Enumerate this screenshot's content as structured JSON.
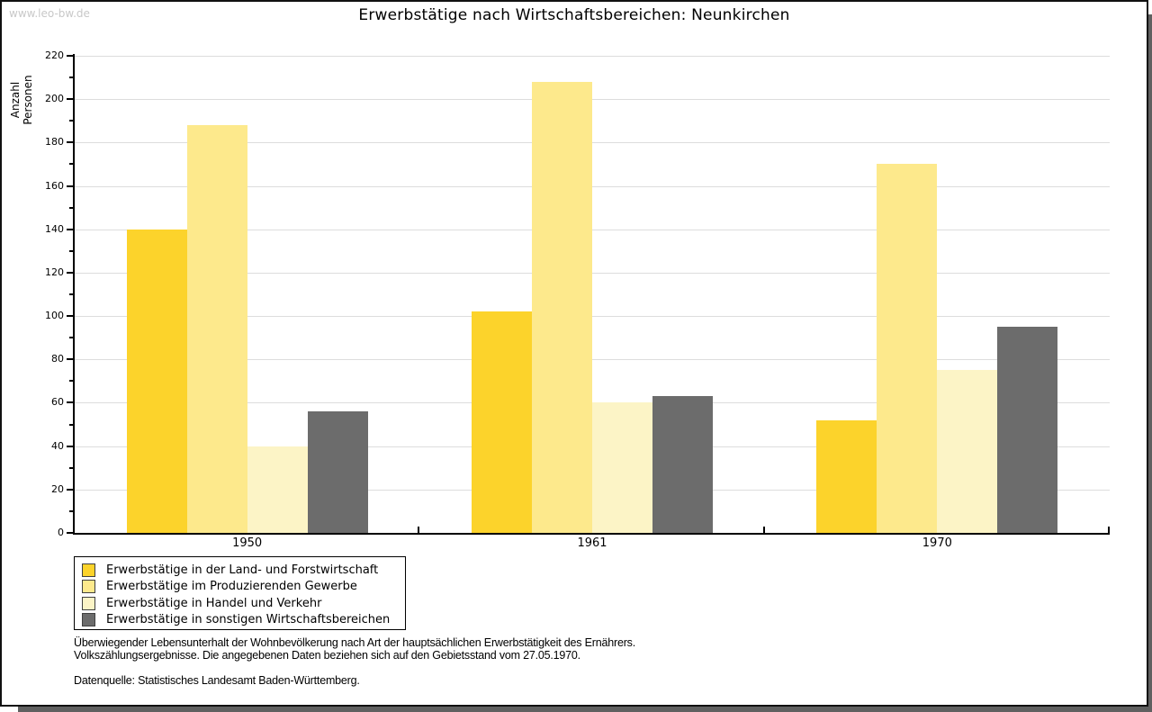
{
  "page": {
    "watermark": "www.leo-bw.de",
    "title": "Erwerbstätige nach Wirtschaftsbereichen: Neunkirchen",
    "footnote_line1": "Überwiegender Lebensunterhalt der Wohnbevölkerung nach Art der hauptsächlichen Erwerbstätigkeit des Ernährers.",
    "footnote_line2": "Volkszählungsergebnisse. Die angegebenen Daten beziehen sich auf den Gebietsstand vom 27.05.1970.",
    "source": "Datenquelle: Statistisches Landesamt Baden-Württemberg."
  },
  "chart_data": {
    "type": "bar",
    "title": "Erwerbstätige nach Wirtschaftsbereichen: Neunkirchen",
    "xlabel": "",
    "ylabel": "Anzahl Personen",
    "categories": [
      "1950",
      "1961",
      "1970"
    ],
    "series": [
      {
        "name": "Erwerbstätige in der Land- und Forstwirtschaft",
        "color": "#FCD32B",
        "values": [
          140,
          102,
          52
        ]
      },
      {
        "name": "Erwerbstätige im Produzierenden Gewerbe",
        "color": "#FDE98C",
        "values": [
          188,
          208,
          170
        ]
      },
      {
        "name": "Erwerbstätige in Handel und Verkehr",
        "color": "#FCF4C6",
        "values": [
          40,
          60,
          75
        ]
      },
      {
        "name": "Erwerbstätige in sonstigen Wirtschaftsbereichen",
        "color": "#6C6C6C",
        "values": [
          56,
          63,
          95
        ]
      }
    ],
    "ylim": [
      0,
      220
    ],
    "yticks": [
      0,
      20,
      40,
      60,
      80,
      100,
      120,
      140,
      160,
      180,
      200,
      220
    ],
    "y_minor_tick_step": 10,
    "grid": true,
    "legend_position": "bottom-left"
  },
  "colors": {
    "gridline": "#DDDDDD",
    "axis": "#000000",
    "watermark": "#C8C8C8",
    "frame_shadow": "#606060",
    "legend_swatch_border": "#404040"
  }
}
